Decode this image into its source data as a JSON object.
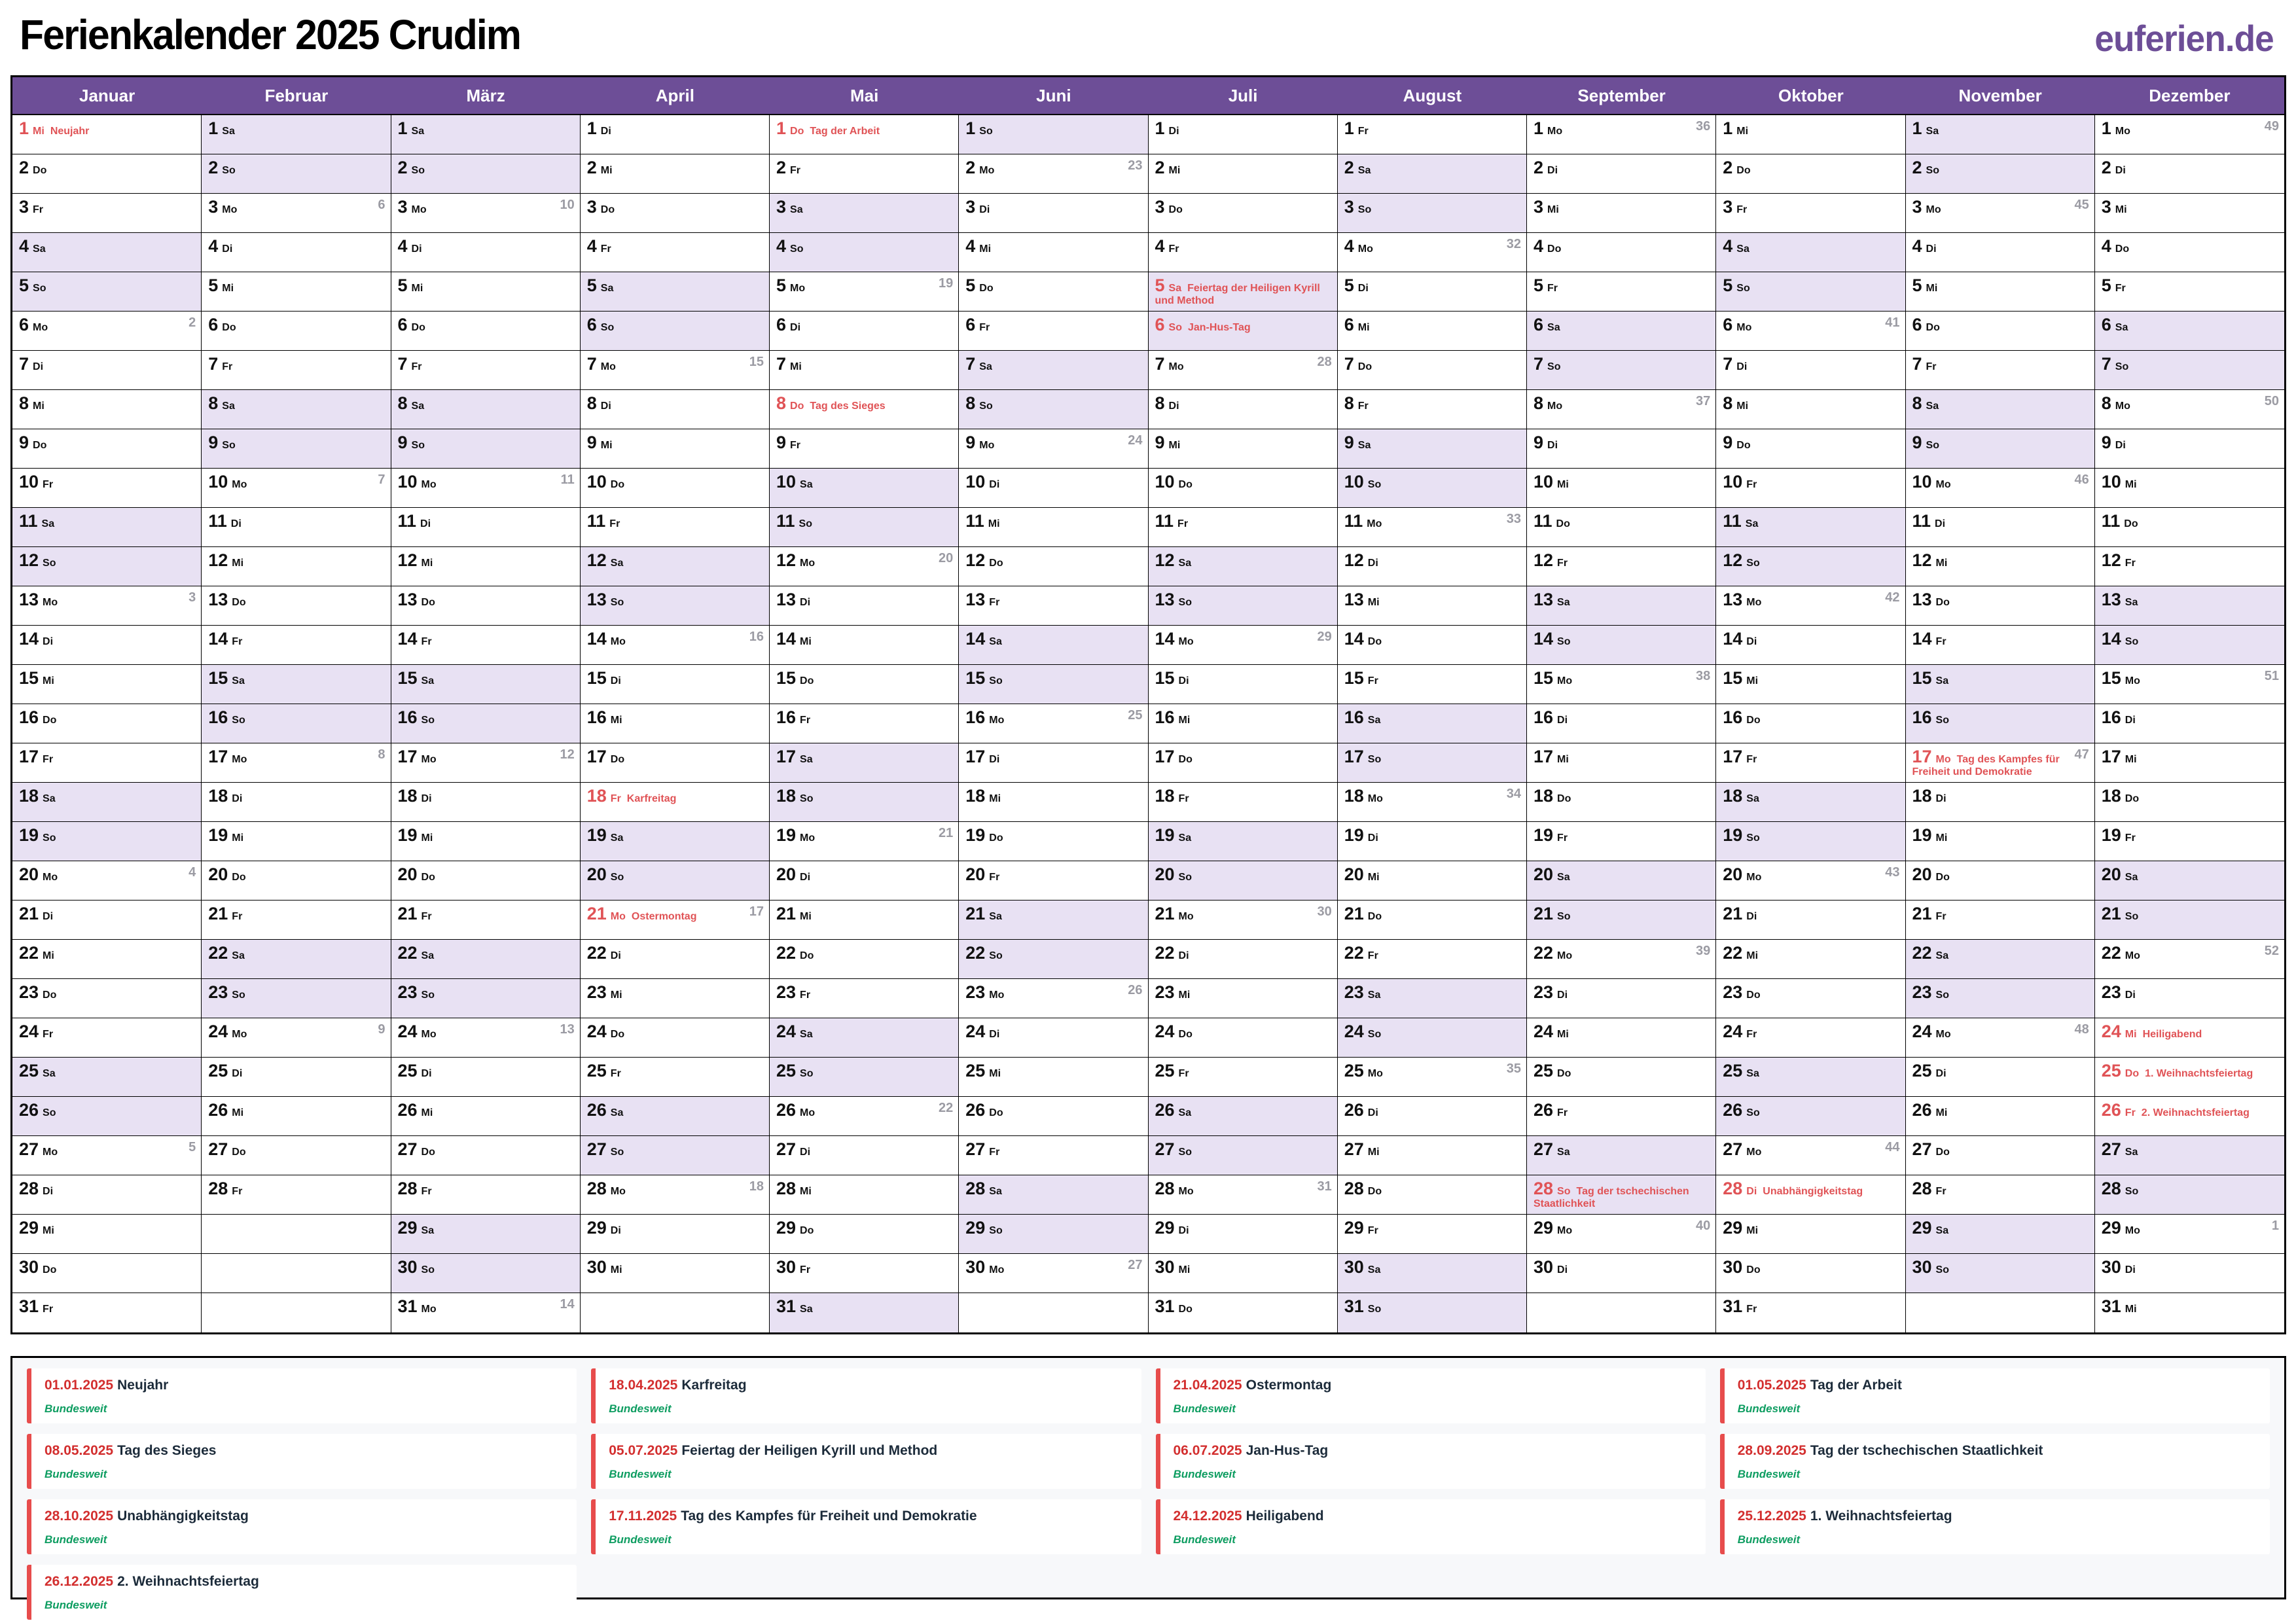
{
  "page": {
    "title": "Ferienkalender 2025 Crudim",
    "logo": "euferien.de"
  },
  "colors": {
    "header_purple": "#6D4E97",
    "weekend_bg": "#E8E1F3",
    "holiday_red": "#E05356",
    "week_number_gray": "#9B9BA3",
    "legend_date_red": "#D32F2F",
    "legend_bar_red": "#E74C4C",
    "legend_green": "#0E9D61",
    "legend_name_dark": "#1C2B3A"
  },
  "weekday_names": [
    "So",
    "Mo",
    "Di",
    "Mi",
    "Do",
    "Fr",
    "Sa"
  ],
  "months": [
    {
      "name": "Januar",
      "days": 31,
      "first_weekday": 3,
      "weeks": {
        "6": 2,
        "13": 3,
        "20": 4,
        "27": 5
      },
      "holidays": {
        "1": "Neujahr"
      }
    },
    {
      "name": "Februar",
      "days": 28,
      "first_weekday": 6,
      "weeks": {
        "3": 6,
        "10": 7,
        "17": 8,
        "24": 9
      },
      "holidays": {}
    },
    {
      "name": "März",
      "days": 31,
      "first_weekday": 6,
      "weeks": {
        "3": 10,
        "10": 11,
        "17": 12,
        "24": 13,
        "31": 14
      },
      "holidays": {}
    },
    {
      "name": "April",
      "days": 30,
      "first_weekday": 2,
      "weeks": {
        "7": 15,
        "14": 16,
        "21": 17,
        "28": 18
      },
      "holidays": {
        "18": "Karfreitag",
        "21": "Ostermontag"
      }
    },
    {
      "name": "Mai",
      "days": 31,
      "first_weekday": 4,
      "weeks": {
        "5": 19,
        "12": 20,
        "19": 21,
        "26": 22
      },
      "holidays": {
        "1": "Tag der Arbeit",
        "8": "Tag des Sieges"
      }
    },
    {
      "name": "Juni",
      "days": 30,
      "first_weekday": 0,
      "weeks": {
        "2": 23,
        "9": 24,
        "16": 25,
        "23": 26,
        "30": 27
      },
      "holidays": {}
    },
    {
      "name": "Juli",
      "days": 31,
      "first_weekday": 2,
      "weeks": {
        "7": 28,
        "14": 29,
        "21": 30,
        "28": 31
      },
      "holidays": {
        "5": "Feiertag der Heiligen Kyrill und Method",
        "6": "Jan-Hus-Tag"
      }
    },
    {
      "name": "August",
      "days": 31,
      "first_weekday": 5,
      "weeks": {
        "4": 32,
        "11": 33,
        "18": 34,
        "25": 35
      },
      "holidays": {}
    },
    {
      "name": "September",
      "days": 30,
      "first_weekday": 1,
      "weeks": {
        "1": 36,
        "8": 37,
        "15": 38,
        "22": 39,
        "29": 40
      },
      "holidays": {
        "28": "Tag der tschechischen Staatlichkeit"
      }
    },
    {
      "name": "Oktober",
      "days": 31,
      "first_weekday": 3,
      "weeks": {
        "6": 41,
        "13": 42,
        "20": 43,
        "27": 44
      },
      "holidays": {
        "28": "Unabhängigkeitstag"
      }
    },
    {
      "name": "November",
      "days": 30,
      "first_weekday": 6,
      "weeks": {
        "3": 45,
        "10": 46,
        "17": 47,
        "24": 48
      },
      "holidays": {
        "17": "Tag des Kampfes für Freiheit und Demokratie"
      }
    },
    {
      "name": "Dezember",
      "days": 31,
      "first_weekday": 1,
      "weeks": {
        "1": 49,
        "8": 50,
        "15": 51,
        "22": 52,
        "29": 1
      },
      "holidays": {
        "24": "Heiligabend",
        "25": "1. Weihnachtsfeiertag",
        "26": "2. Weihnachtsfeiertag"
      }
    }
  ],
  "legend": [
    {
      "date": "01.01.2025",
      "name": "Neujahr",
      "region": "Bundesweit"
    },
    {
      "date": "18.04.2025",
      "name": "Karfreitag",
      "region": "Bundesweit"
    },
    {
      "date": "21.04.2025",
      "name": "Ostermontag",
      "region": "Bundesweit"
    },
    {
      "date": "01.05.2025",
      "name": "Tag der Arbeit",
      "region": "Bundesweit"
    },
    {
      "date": "08.05.2025",
      "name": "Tag des Sieges",
      "region": "Bundesweit"
    },
    {
      "date": "05.07.2025",
      "name": "Feiertag der Heiligen Kyrill und Method",
      "region": "Bundesweit"
    },
    {
      "date": "06.07.2025",
      "name": "Jan-Hus-Tag",
      "region": "Bundesweit"
    },
    {
      "date": "28.09.2025",
      "name": "Tag der tschechischen Staatlichkeit",
      "region": "Bundesweit"
    },
    {
      "date": "28.10.2025",
      "name": "Unabhängigkeitstag",
      "region": "Bundesweit"
    },
    {
      "date": "17.11.2025",
      "name": "Tag des Kampfes für Freiheit und Demokratie",
      "region": "Bundesweit"
    },
    {
      "date": "24.12.2025",
      "name": "Heiligabend",
      "region": "Bundesweit"
    },
    {
      "date": "25.12.2025",
      "name": "1. Weihnachtsfeiertag",
      "region": "Bundesweit"
    },
    {
      "date": "26.12.2025",
      "name": "2. Weihnachtsfeiertag",
      "region": "Bundesweit"
    }
  ]
}
